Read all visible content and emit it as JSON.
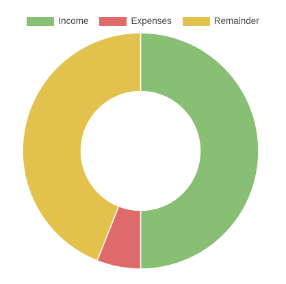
{
  "chart_data": {
    "type": "pie",
    "variant": "doughnut",
    "title": "",
    "legend_position": "top",
    "series": [
      {
        "name": "Income",
        "value": 50,
        "color": "#88bf74"
      },
      {
        "name": "Expenses",
        "value": 6,
        "color": "#de6b69"
      },
      {
        "name": "Remainder",
        "value": 44,
        "color": "#e2c14d"
      }
    ]
  }
}
